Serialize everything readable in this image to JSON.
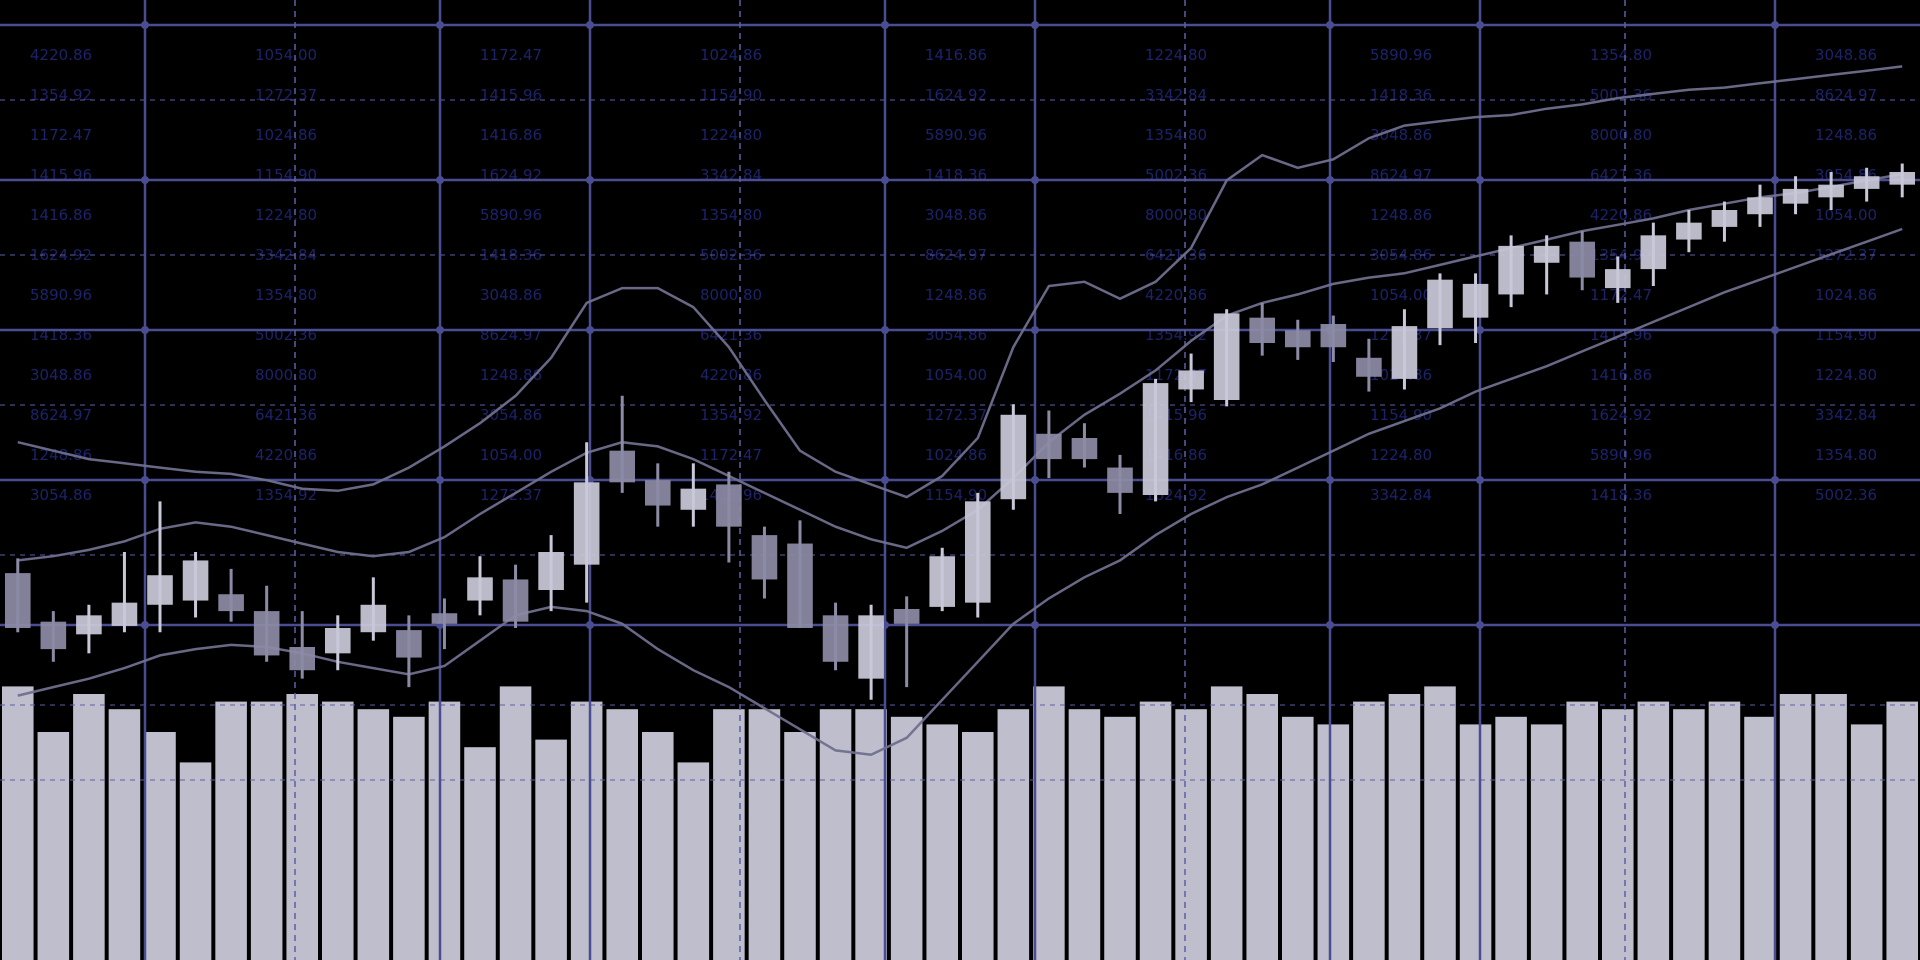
{
  "colors": {
    "background": "#000000",
    "grid_solid": "#4b4d93",
    "grid_dashed": "#5d5fa6",
    "candle_fill": "#c9c8d8",
    "candle_dark": "#8c8ba5",
    "volume_fill": "#cfcedd",
    "band_line": "#6f6f8e",
    "price_text": "#1f2470"
  },
  "chart_data": {
    "type": "candlestick",
    "title": "",
    "xlabel": "",
    "ylabel": "",
    "grid": true,
    "indices": [
      0,
      1,
      2,
      3,
      4,
      5,
      6,
      7,
      8,
      9,
      10,
      11,
      12,
      13,
      14,
      15,
      16,
      17,
      18,
      19,
      20,
      21,
      22,
      23,
      24,
      25,
      26,
      27,
      28,
      29,
      30,
      31,
      32,
      33,
      34,
      35,
      36,
      37,
      38,
      39,
      40,
      41,
      42,
      43,
      44,
      45,
      46,
      47,
      48,
      49,
      50,
      51,
      52,
      53
    ],
    "candles": [
      {
        "o": 5.8,
        "c": 3.2,
        "h": 6.5,
        "l": 3.0
      },
      {
        "o": 3.5,
        "c": 2.2,
        "h": 4.0,
        "l": 1.6
      },
      {
        "o": 2.9,
        "c": 3.8,
        "h": 4.3,
        "l": 2.0
      },
      {
        "o": 3.3,
        "c": 4.4,
        "h": 6.8,
        "l": 3.0
      },
      {
        "o": 4.3,
        "c": 5.7,
        "h": 9.2,
        "l": 3.0
      },
      {
        "o": 4.5,
        "c": 6.4,
        "h": 6.8,
        "l": 3.7
      },
      {
        "o": 4.8,
        "c": 4.0,
        "h": 6.0,
        "l": 3.5
      },
      {
        "o": 4.0,
        "c": 1.9,
        "h": 5.2,
        "l": 1.6
      },
      {
        "o": 2.3,
        "c": 1.2,
        "h": 4.0,
        "l": 0.8
      },
      {
        "o": 2.0,
        "c": 3.2,
        "h": 3.8,
        "l": 1.2
      },
      {
        "o": 3.0,
        "c": 4.3,
        "h": 5.6,
        "l": 2.6
      },
      {
        "o": 3.1,
        "c": 1.8,
        "h": 3.8,
        "l": 0.4
      },
      {
        "o": 3.9,
        "c": 3.4,
        "h": 4.6,
        "l": 2.2
      },
      {
        "o": 4.5,
        "c": 5.6,
        "h": 6.6,
        "l": 3.8
      },
      {
        "o": 5.5,
        "c": 3.5,
        "h": 6.2,
        "l": 3.2
      },
      {
        "o": 5.0,
        "c": 6.8,
        "h": 7.6,
        "l": 4.0
      },
      {
        "o": 6.2,
        "c": 10.1,
        "h": 12.0,
        "l": 4.4
      },
      {
        "o": 11.6,
        "c": 10.1,
        "h": 14.2,
        "l": 9.6
      },
      {
        "o": 10.2,
        "c": 9.0,
        "h": 11.0,
        "l": 8.0
      },
      {
        "o": 8.8,
        "c": 9.8,
        "h": 11.0,
        "l": 8.0
      },
      {
        "o": 10.0,
        "c": 8.0,
        "h": 10.6,
        "l": 6.3
      },
      {
        "o": 7.6,
        "c": 5.5,
        "h": 8.0,
        "l": 4.6
      },
      {
        "o": 7.2,
        "c": 3.2,
        "h": 8.3,
        "l": 3.2
      },
      {
        "o": 3.8,
        "c": 1.6,
        "h": 4.4,
        "l": 1.2
      },
      {
        "o": 0.8,
        "c": 3.8,
        "h": 4.3,
        "l": -0.2
      },
      {
        "o": 4.1,
        "c": 3.4,
        "h": 4.7,
        "l": 0.4
      },
      {
        "o": 4.2,
        "c": 6.6,
        "h": 7.0,
        "l": 4.0
      },
      {
        "o": 4.4,
        "c": 9.2,
        "h": 9.6,
        "l": 3.7
      },
      {
        "o": 9.3,
        "c": 13.3,
        "h": 13.8,
        "l": 8.8
      },
      {
        "o": 12.4,
        "c": 11.2,
        "h": 13.5,
        "l": 10.3
      },
      {
        "o": 12.2,
        "c": 11.2,
        "h": 12.9,
        "l": 10.8
      },
      {
        "o": 10.8,
        "c": 9.6,
        "h": 11.4,
        "l": 8.6
      },
      {
        "o": 9.5,
        "c": 14.8,
        "h": 15.0,
        "l": 9.2
      },
      {
        "o": 14.5,
        "c": 15.4,
        "h": 16.2,
        "l": 13.9
      },
      {
        "o": 14.0,
        "c": 18.1,
        "h": 18.3,
        "l": 13.7
      },
      {
        "o": 17.9,
        "c": 16.7,
        "h": 18.6,
        "l": 16.1
      },
      {
        "o": 17.3,
        "c": 16.5,
        "h": 17.8,
        "l": 15.9
      },
      {
        "o": 17.6,
        "c": 16.5,
        "h": 18.0,
        "l": 15.8
      },
      {
        "o": 16.0,
        "c": 15.1,
        "h": 16.9,
        "l": 14.4
      },
      {
        "o": 15.0,
        "c": 17.5,
        "h": 18.3,
        "l": 14.5
      },
      {
        "o": 17.4,
        "c": 19.7,
        "h": 20.0,
        "l": 16.6
      },
      {
        "o": 17.9,
        "c": 19.5,
        "h": 20.0,
        "l": 16.7
      },
      {
        "o": 19.0,
        "c": 21.3,
        "h": 21.8,
        "l": 18.4
      },
      {
        "o": 20.5,
        "c": 21.3,
        "h": 21.8,
        "l": 19.0
      },
      {
        "o": 21.5,
        "c": 19.8,
        "h": 22.0,
        "l": 19.2
      },
      {
        "o": 19.3,
        "c": 20.2,
        "h": 20.8,
        "l": 18.6
      },
      {
        "o": 20.2,
        "c": 21.8,
        "h": 22.4,
        "l": 19.4
      },
      {
        "o": 21.6,
        "c": 22.4,
        "h": 23.0,
        "l": 21.0
      },
      {
        "o": 22.2,
        "c": 23.0,
        "h": 23.4,
        "l": 21.5
      },
      {
        "o": 22.8,
        "c": 23.6,
        "h": 24.2,
        "l": 22.2
      },
      {
        "o": 23.3,
        "c": 24.0,
        "h": 24.6,
        "l": 22.8
      },
      {
        "o": 23.6,
        "c": 24.2,
        "h": 24.8,
        "l": 23.0
      },
      {
        "o": 24.0,
        "c": 24.6,
        "h": 25.0,
        "l": 23.4
      },
      {
        "o": 24.2,
        "c": 24.8,
        "h": 25.2,
        "l": 23.6
      }
    ],
    "volume": [
      36,
      30,
      35,
      33,
      30,
      26,
      34,
      34,
      35,
      34,
      33,
      32,
      34,
      28,
      36,
      29,
      34,
      33,
      30,
      26,
      33,
      33,
      30,
      33,
      33,
      32,
      31,
      30,
      33,
      36,
      33,
      32,
      34,
      33,
      36,
      35,
      32,
      31,
      34,
      35,
      36,
      31,
      32,
      31,
      34,
      33,
      34,
      33,
      34,
      32,
      35,
      35,
      31,
      34
    ],
    "upper_band": [
      12.0,
      11.6,
      11.2,
      11.0,
      10.8,
      10.6,
      10.5,
      10.2,
      9.8,
      9.7,
      10.0,
      10.8,
      11.8,
      12.9,
      14.2,
      16.0,
      18.6,
      19.3,
      19.3,
      18.4,
      16.5,
      14.0,
      11.6,
      10.6,
      10.0,
      9.4,
      10.4,
      12.2,
      16.5,
      19.4,
      19.6,
      18.8,
      19.6,
      21.2,
      24.4,
      25.6,
      25.0,
      25.4,
      26.4,
      27.0,
      27.2,
      27.4,
      27.5,
      27.8,
      28.0,
      28.3,
      28.5,
      28.7,
      28.8,
      29.0,
      29.2,
      29.4,
      29.6,
      29.8
    ],
    "middle_band": [
      6.4,
      6.6,
      6.9,
      7.3,
      7.9,
      8.2,
      8.0,
      7.6,
      7.2,
      6.8,
      6.6,
      6.8,
      7.5,
      8.6,
      9.6,
      10.6,
      11.5,
      12.0,
      11.8,
      11.2,
      10.4,
      9.6,
      8.8,
      8.0,
      7.4,
      7.0,
      7.8,
      8.8,
      10.3,
      12.0,
      13.3,
      14.3,
      15.4,
      16.8,
      18.0,
      18.6,
      19.0,
      19.5,
      19.8,
      20.0,
      20.4,
      20.8,
      21.2,
      21.6,
      22.0,
      22.3,
      22.6,
      23.0,
      23.3,
      23.6,
      23.8,
      24.1,
      24.4,
      24.7
    ],
    "lower_band": [
      0.0,
      0.4,
      0.8,
      1.3,
      1.9,
      2.2,
      2.4,
      2.3,
      2.0,
      1.6,
      1.3,
      1.0,
      1.4,
      2.6,
      3.8,
      4.2,
      4.0,
      3.4,
      2.2,
      1.2,
      0.4,
      -0.6,
      -1.6,
      -2.6,
      -2.8,
      -2.0,
      -0.2,
      1.6,
      3.4,
      4.6,
      5.6,
      6.4,
      7.6,
      8.6,
      9.4,
      10.0,
      10.8,
      11.6,
      12.4,
      13.0,
      13.6,
      14.4,
      15.0,
      15.6,
      16.3,
      17.0,
      17.7,
      18.4,
      19.1,
      19.7,
      20.3,
      20.9,
      21.5,
      22.1
    ],
    "ylim": [
      -4,
      32
    ],
    "volume_max": 40,
    "price_labels": [
      "4220.86",
      "1354.92",
      "1172.47",
      "1415.96",
      "1416.86",
      "1624.92",
      "5890.96",
      "1418.36",
      "3048.86",
      "8624.97",
      "1248.86",
      "3054.86",
      "1054.00",
      "1272.37",
      "1024.86",
      "1154.90",
      "1224.80",
      "3342.84",
      "1354.80",
      "5002.36",
      "8000.80",
      "6421.36"
    ],
    "price_label_columns": [
      "col1",
      "col2",
      "col3",
      "col4",
      "col5",
      "col6",
      "col7",
      "col8",
      "col9",
      "col10"
    ]
  }
}
